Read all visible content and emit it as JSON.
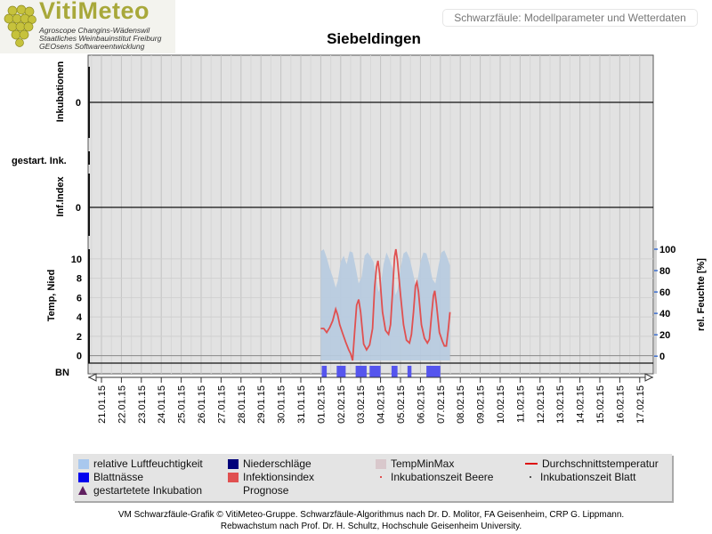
{
  "logo": {
    "title": "VitiMeteo",
    "lines": [
      "Agroscope Changins-Wädenswil",
      "Staatliches Weinbauinstitut Freiburg",
      "GEOsens Softwareentwicklung"
    ]
  },
  "model_title": "Schwarzfäule: Modellparameter und Wetterdaten",
  "chart_data": {
    "type": "line",
    "title": "Siebeldingen",
    "x_dates": [
      "21.01.15",
      "22.01.15",
      "23.01.15",
      "24.01.15",
      "25.01.15",
      "26.01.15",
      "27.01.15",
      "28.01.15",
      "29.01.15",
      "30.01.15",
      "31.01.15",
      "01.02.15",
      "02.02.15",
      "03.02.15",
      "04.02.15",
      "05.02.15",
      "06.02.15",
      "07.02.15",
      "08.02.15",
      "09.02.15",
      "10.02.15",
      "11.02.15",
      "12.02.15",
      "13.02.15",
      "14.02.15",
      "15.02.15",
      "16.02.15",
      "17.02.15"
    ],
    "panels": [
      {
        "label": "Inkubationen",
        "yticks": [
          0
        ]
      },
      {
        "label": "gestart. Ink.",
        "yticks": []
      },
      {
        "label": "Inf.Index",
        "yticks": [
          0
        ]
      },
      {
        "label": "Temp, Nied",
        "yticks": [
          0,
          2,
          4,
          6,
          8,
          10
        ],
        "ylim": [
          -0.5,
          11
        ],
        "right_label": "rel. Feuchte [%]",
        "right_yticks": [
          0,
          20,
          40,
          60,
          80,
          100
        ],
        "right_ylim": [
          -4,
          100
        ]
      },
      {
        "label": "BN",
        "yticks": []
      }
    ],
    "series": [
      {
        "name": "Durchschnittstemperatur",
        "color": "#e05050",
        "points": [
          [
            11.0,
            2.8
          ],
          [
            11.15,
            2.8
          ],
          [
            11.3,
            2.4
          ],
          [
            11.45,
            2.9
          ],
          [
            11.6,
            3.6
          ],
          [
            11.75,
            4.8
          ],
          [
            11.85,
            4.2
          ],
          [
            11.95,
            3.2
          ],
          [
            12.1,
            2.3
          ],
          [
            12.25,
            1.4
          ],
          [
            12.4,
            0.6
          ],
          [
            12.5,
            0.2
          ],
          [
            12.6,
            -0.5
          ],
          [
            12.7,
            2.5
          ],
          [
            12.8,
            5.2
          ],
          [
            12.9,
            5.8
          ],
          [
            13.0,
            4.5
          ],
          [
            13.15,
            1.2
          ],
          [
            13.3,
            0.6
          ],
          [
            13.45,
            1.1
          ],
          [
            13.6,
            2.8
          ],
          [
            13.7,
            7.0
          ],
          [
            13.8,
            9.2
          ],
          [
            13.87,
            9.8
          ],
          [
            13.95,
            8.5
          ],
          [
            14.1,
            4.5
          ],
          [
            14.25,
            2.6
          ],
          [
            14.4,
            2.2
          ],
          [
            14.5,
            3.2
          ],
          [
            14.6,
            6.5
          ],
          [
            14.7,
            10.2
          ],
          [
            14.77,
            11.0
          ],
          [
            14.85,
            9.8
          ],
          [
            15.0,
            6.3
          ],
          [
            15.15,
            3.2
          ],
          [
            15.3,
            1.6
          ],
          [
            15.45,
            1.3
          ],
          [
            15.55,
            2.2
          ],
          [
            15.65,
            4.5
          ],
          [
            15.75,
            7.2
          ],
          [
            15.82,
            7.6
          ],
          [
            15.9,
            6.6
          ],
          [
            16.05,
            3.2
          ],
          [
            16.2,
            1.8
          ],
          [
            16.35,
            1.3
          ],
          [
            16.45,
            1.7
          ],
          [
            16.55,
            4.0
          ],
          [
            16.65,
            6.2
          ],
          [
            16.72,
            6.7
          ],
          [
            16.8,
            5.4
          ],
          [
            16.95,
            2.4
          ],
          [
            17.1,
            1.5
          ],
          [
            17.2,
            1.0
          ],
          [
            17.3,
            1.0
          ],
          [
            17.4,
            2.8
          ],
          [
            17.48,
            4.5
          ]
        ]
      },
      {
        "name": "relative Luftfeuchtigkeit",
        "color": "#b7cbe0",
        "points": [
          [
            11.0,
            98
          ],
          [
            11.15,
            100
          ],
          [
            11.3,
            92
          ],
          [
            11.45,
            82
          ],
          [
            11.6,
            74
          ],
          [
            11.75,
            64
          ],
          [
            11.85,
            70
          ],
          [
            12.0,
            88
          ],
          [
            12.15,
            94
          ],
          [
            12.3,
            86
          ],
          [
            12.45,
            98
          ],
          [
            12.6,
            97
          ],
          [
            12.75,
            83
          ],
          [
            12.9,
            68
          ],
          [
            13.05,
            74
          ],
          [
            13.2,
            94
          ],
          [
            13.35,
            97
          ],
          [
            13.5,
            93
          ],
          [
            13.65,
            88
          ],
          [
            13.8,
            70
          ],
          [
            13.9,
            60
          ],
          [
            14.0,
            65
          ],
          [
            14.15,
            86
          ],
          [
            14.3,
            97
          ],
          [
            14.45,
            90
          ],
          [
            14.6,
            82
          ],
          [
            14.75,
            57
          ],
          [
            14.85,
            62
          ],
          [
            15.0,
            82
          ],
          [
            15.15,
            96
          ],
          [
            15.3,
            98
          ],
          [
            15.45,
            92
          ],
          [
            15.6,
            80
          ],
          [
            15.75,
            67
          ],
          [
            15.85,
            70
          ],
          [
            16.0,
            88
          ],
          [
            16.15,
            97
          ],
          [
            16.3,
            96
          ],
          [
            16.45,
            86
          ],
          [
            16.6,
            72
          ],
          [
            16.75,
            68
          ],
          [
            16.9,
            84
          ],
          [
            17.05,
            97
          ],
          [
            17.2,
            99
          ],
          [
            17.35,
            92
          ],
          [
            17.48,
            85
          ]
        ]
      },
      {
        "name": "Niederschläge",
        "color": "#00007a",
        "points": []
      },
      {
        "name": "TempMinMax",
        "color": "#d9c8cc",
        "points": []
      },
      {
        "name": "Blattnässe",
        "color": "#5555ee",
        "intervals": [
          [
            11.05,
            11.3
          ],
          [
            11.8,
            12.25
          ],
          [
            12.75,
            13.3
          ],
          [
            13.45,
            14.0
          ],
          [
            14.55,
            14.85
          ],
          [
            15.35,
            15.55
          ],
          [
            16.3,
            17.0
          ]
        ]
      },
      {
        "name": "Infektionsindex",
        "color": "#e05050",
        "points": []
      },
      {
        "name": "Inkubationszeit Beere",
        "color": "#e05050",
        "points": []
      },
      {
        "name": "Inkubationszeit Blatt",
        "color": "#555555",
        "points": []
      },
      {
        "name": "gestartetete Inkubation",
        "color": "#602060",
        "points": []
      },
      {
        "name": "Prognose",
        "color": "#e4e4e4",
        "points": []
      }
    ],
    "legend": [
      {
        "label": "relative Luftfeuchtigkeit",
        "color": "#a9c8ee",
        "marker": "square"
      },
      {
        "label": "Niederschläge",
        "color": "#00007a",
        "marker": "square"
      },
      {
        "label": "TempMinMax",
        "color": "#d9c8cc",
        "marker": "square"
      },
      {
        "label": "Durchschnittstemperatur",
        "color": "#dd1111",
        "marker": "line"
      },
      {
        "label": "Blattnässe",
        "color": "#0000ee",
        "marker": "square"
      },
      {
        "label": "Infektionsindex",
        "color": "#e05050",
        "marker": "square"
      },
      {
        "label": "Inkubationszeit Beere",
        "color": "#e05050",
        "marker": "dot"
      },
      {
        "label": "Inkubationszeit Blatt",
        "color": "#555555",
        "marker": "dot"
      },
      {
        "label": "gestartetete Inkubation",
        "color": "#602060",
        "marker": "triangle"
      },
      {
        "label": "Prognose",
        "color": "#e4e4e4",
        "marker": "none"
      }
    ]
  },
  "footer": {
    "line1": "VM Schwarzfäule-Grafik © VitiMeteo-Gruppe. Schwarzfäule-Algorithmus nach Dr. D. Molitor, FA Geisenheim, CRP G. Lippmann.",
    "line2": "Rebwachstum nach Prof. Dr. H. Schultz, Hochschule Geisenheim University."
  }
}
